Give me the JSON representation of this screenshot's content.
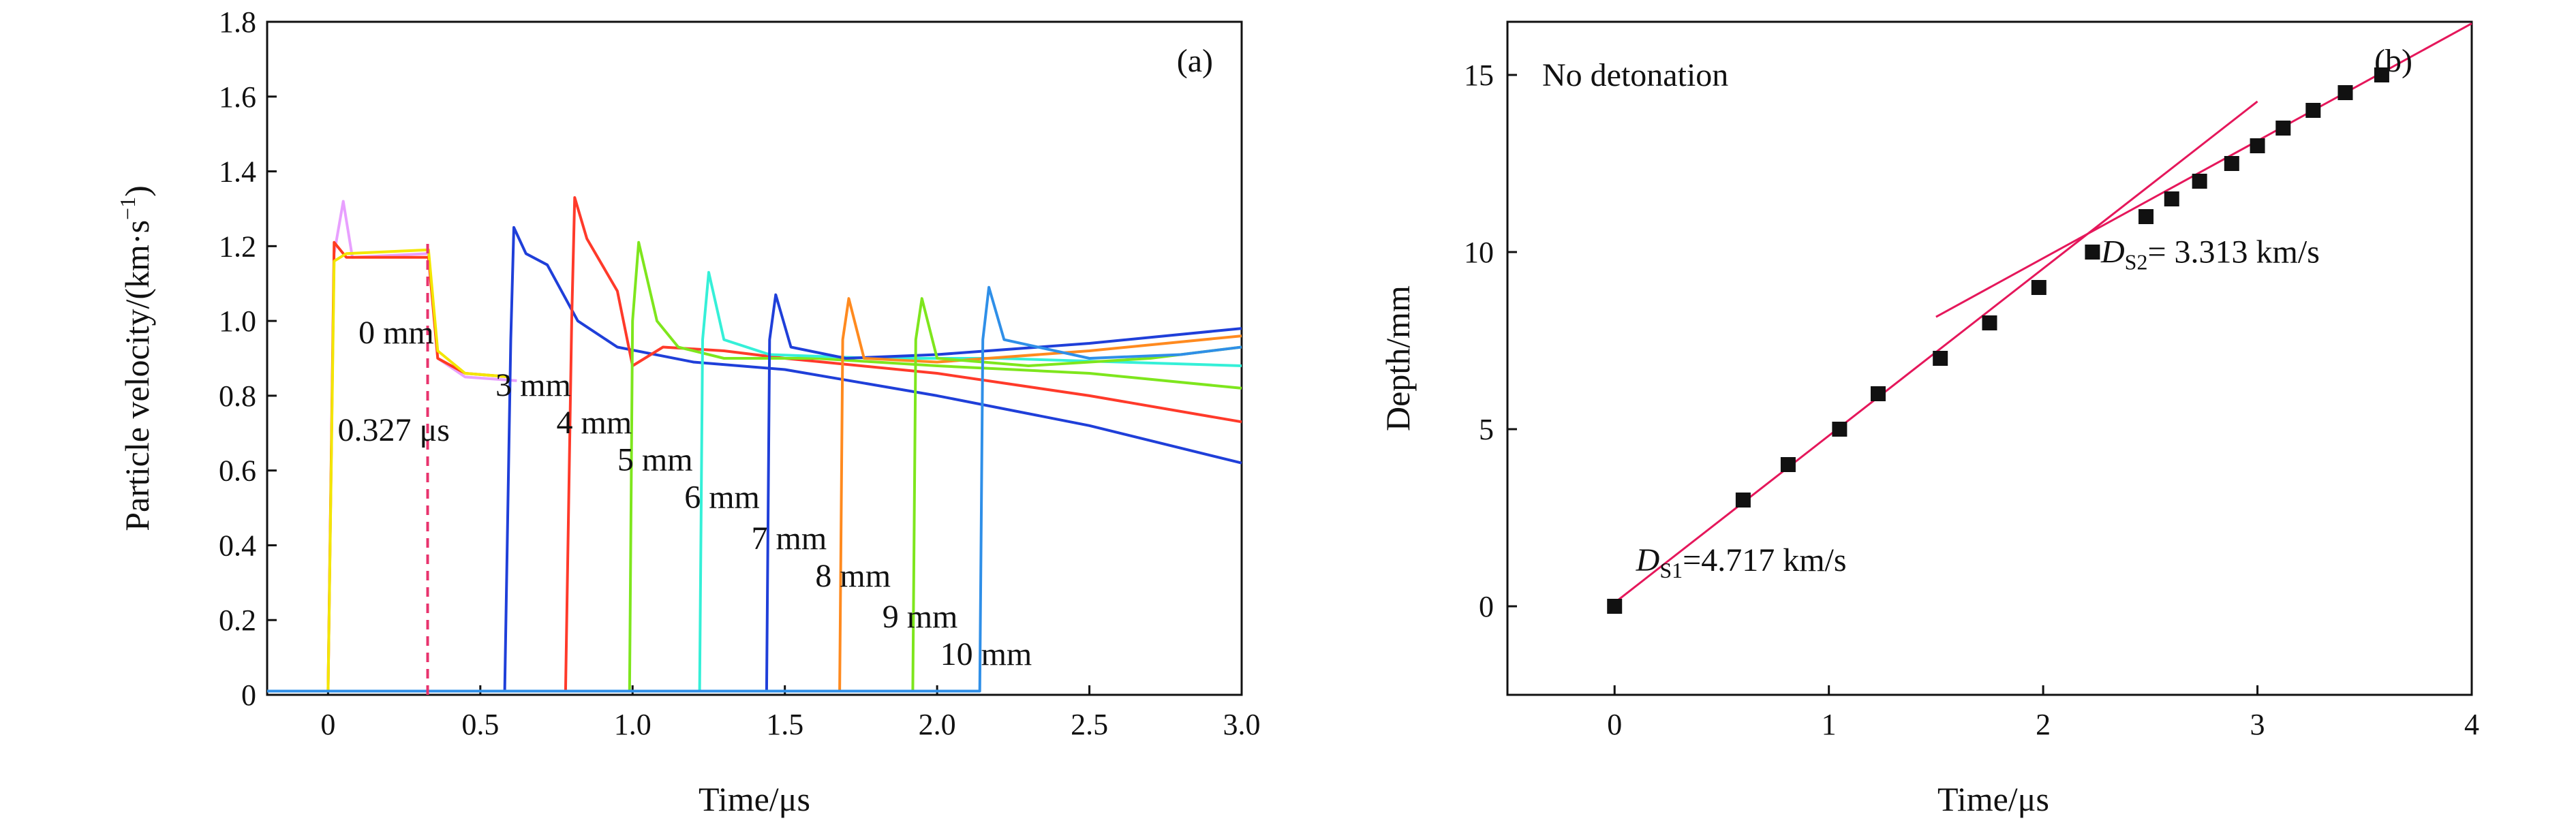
{
  "chart_data": [
    {
      "type": "line",
      "panel_label": "(a)",
      "xlabel": "Time/μs",
      "ylabel": "Particle velocity/(km·s",
      "ylabel_sup": "−1",
      "ylabel_close": ")",
      "xlim": [
        -0.2,
        3.0
      ],
      "ylim": [
        0,
        1.8
      ],
      "xticks": [
        "0",
        "0.5",
        "1.0",
        "1.5",
        "2.0",
        "2.5",
        "3.0"
      ],
      "xtick_values": [
        0,
        0.5,
        1.0,
        1.5,
        2.0,
        2.5,
        3.0
      ],
      "yticks": [
        "0",
        "0.2",
        "0.4",
        "0.6",
        "0.8",
        "1.0",
        "1.2",
        "1.4",
        "1.6",
        "1.8"
      ],
      "ytick_values": [
        0,
        0.2,
        0.4,
        0.6,
        0.8,
        1.0,
        1.2,
        1.4,
        1.6,
        1.8
      ],
      "marker_line": {
        "x": 0.327,
        "y_top": 1.21,
        "color": "#e8336d",
        "label": "0.327 μs"
      },
      "series": [
        {
          "name": "0 mm",
          "color": "#e8a0ff",
          "points": [
            [
              -0.2,
              0.01
            ],
            [
              0.0,
              0.01
            ],
            [
              0.02,
              1.18
            ],
            [
              0.05,
              1.32
            ],
            [
              0.08,
              1.17
            ],
            [
              0.33,
              1.18
            ],
            [
              0.36,
              0.9
            ],
            [
              0.45,
              0.85
            ],
            [
              0.62,
              0.84
            ]
          ]
        },
        {
          "name": "0 mm",
          "color": "#ff3b1f",
          "points": [
            [
              -0.2,
              0.01
            ],
            [
              0.0,
              0.01
            ],
            [
              0.02,
              1.21
            ],
            [
              0.06,
              1.17
            ],
            [
              0.33,
              1.17
            ],
            [
              0.36,
              0.9
            ],
            [
              0.45,
              0.86
            ],
            [
              0.6,
              0.85
            ]
          ]
        },
        {
          "name": "0 mm",
          "color": "#f3e600",
          "points": [
            [
              -0.2,
              0.01
            ],
            [
              0.0,
              0.01
            ],
            [
              0.02,
              1.16
            ],
            [
              0.06,
              1.18
            ],
            [
              0.33,
              1.19
            ],
            [
              0.36,
              0.92
            ],
            [
              0.45,
              0.86
            ],
            [
              0.6,
              0.85
            ]
          ]
        },
        {
          "name": "3 mm",
          "color": "#1f3fd9",
          "points": [
            [
              -0.2,
              0.01
            ],
            [
              0.58,
              0.01
            ],
            [
              0.6,
              0.95
            ],
            [
              0.61,
              1.25
            ],
            [
              0.65,
              1.18
            ],
            [
              0.72,
              1.15
            ],
            [
              0.82,
              1.0
            ],
            [
              0.95,
              0.93
            ],
            [
              1.2,
              0.89
            ],
            [
              1.5,
              0.87
            ],
            [
              2.0,
              0.8
            ],
            [
              2.5,
              0.72
            ],
            [
              3.0,
              0.62
            ]
          ]
        },
        {
          "name": "4 mm",
          "color": "#ff3a2a",
          "points": [
            [
              -0.2,
              0.01
            ],
            [
              0.78,
              0.01
            ],
            [
              0.8,
              1.0
            ],
            [
              0.81,
              1.33
            ],
            [
              0.85,
              1.22
            ],
            [
              0.95,
              1.08
            ],
            [
              1.0,
              0.88
            ],
            [
              1.1,
              0.93
            ],
            [
              1.3,
              0.92
            ],
            [
              1.5,
              0.9
            ],
            [
              2.0,
              0.86
            ],
            [
              2.5,
              0.8
            ],
            [
              3.0,
              0.73
            ]
          ]
        },
        {
          "name": "5 mm",
          "color": "#7ee61d",
          "points": [
            [
              -0.2,
              0.01
            ],
            [
              0.99,
              0.01
            ],
            [
              1.0,
              1.0
            ],
            [
              1.02,
              1.21
            ],
            [
              1.08,
              1.0
            ],
            [
              1.15,
              0.93
            ],
            [
              1.3,
              0.9
            ],
            [
              1.6,
              0.9
            ],
            [
              2.0,
              0.88
            ],
            [
              2.5,
              0.86
            ],
            [
              3.0,
              0.82
            ]
          ]
        },
        {
          "name": "6 mm",
          "color": "#35f0d8",
          "points": [
            [
              -0.2,
              0.01
            ],
            [
              1.22,
              0.01
            ],
            [
              1.23,
              0.95
            ],
            [
              1.25,
              1.13
            ],
            [
              1.3,
              0.95
            ],
            [
              1.45,
              0.91
            ],
            [
              1.8,
              0.9
            ],
            [
              2.2,
              0.9
            ],
            [
              2.6,
              0.89
            ],
            [
              3.0,
              0.88
            ]
          ]
        },
        {
          "name": "7 mm",
          "color": "#1f3fd9",
          "points": [
            [
              -0.2,
              0.01
            ],
            [
              1.44,
              0.01
            ],
            [
              1.45,
              0.95
            ],
            [
              1.47,
              1.07
            ],
            [
              1.52,
              0.93
            ],
            [
              1.7,
              0.9
            ],
            [
              2.0,
              0.91
            ],
            [
              2.5,
              0.94
            ],
            [
              3.0,
              0.98
            ]
          ]
        },
        {
          "name": "8 mm",
          "color": "#ff8a1f",
          "points": [
            [
              -0.2,
              0.01
            ],
            [
              1.68,
              0.01
            ],
            [
              1.69,
              0.95
            ],
            [
              1.71,
              1.06
            ],
            [
              1.76,
              0.9
            ],
            [
              2.0,
              0.89
            ],
            [
              2.5,
              0.92
            ],
            [
              3.0,
              0.96
            ]
          ]
        },
        {
          "name": "9 mm",
          "color": "#7ee61d",
          "points": [
            [
              -0.2,
              0.01
            ],
            [
              1.92,
              0.01
            ],
            [
              1.93,
              0.95
            ],
            [
              1.95,
              1.06
            ],
            [
              2.0,
              0.9
            ],
            [
              2.3,
              0.88
            ],
            [
              2.7,
              0.9
            ],
            [
              3.0,
              0.93
            ]
          ]
        },
        {
          "name": "10 mm",
          "color": "#2f8fe8",
          "points": [
            [
              -0.2,
              0.01
            ],
            [
              2.14,
              0.01
            ],
            [
              2.15,
              0.95
            ],
            [
              2.17,
              1.09
            ],
            [
              2.22,
              0.95
            ],
            [
              2.5,
              0.9
            ],
            [
              2.8,
              0.91
            ],
            [
              3.0,
              0.93
            ]
          ]
        }
      ],
      "annotations": [
        {
          "text": "0 mm",
          "x": 0.1,
          "y": 0.94
        },
        {
          "text": "3 mm",
          "x": 0.55,
          "y": 0.8
        },
        {
          "text": "4 mm",
          "x": 0.75,
          "y": 0.7
        },
        {
          "text": "5 mm",
          "x": 0.95,
          "y": 0.6
        },
        {
          "text": "6 mm",
          "x": 1.17,
          "y": 0.5
        },
        {
          "text": "7 mm",
          "x": 1.39,
          "y": 0.39
        },
        {
          "text": "8 mm",
          "x": 1.6,
          "y": 0.29
        },
        {
          "text": "9 mm",
          "x": 1.82,
          "y": 0.18
        },
        {
          "text": "10 mm",
          "x": 2.01,
          "y": 0.08
        }
      ]
    },
    {
      "type": "scatter",
      "panel_label": "(b)",
      "title": "No detonation",
      "xlabel": "Time/μs",
      "ylabel": "Depth/mm",
      "xlim": [
        -0.5,
        4.0
      ],
      "ylim": [
        -2.5,
        16.5
      ],
      "xticks": [
        "0",
        "1",
        "2",
        "3",
        "4"
      ],
      "xtick_values": [
        0,
        1,
        2,
        3,
        4
      ],
      "yticks": [
        "0",
        "5",
        "10",
        "15"
      ],
      "ytick_values": [
        0,
        5,
        10,
        15
      ],
      "points": [
        [
          0,
          0
        ],
        [
          0.6,
          3
        ],
        [
          0.81,
          4
        ],
        [
          1.05,
          5
        ],
        [
          1.23,
          6
        ],
        [
          1.52,
          7
        ],
        [
          1.75,
          8
        ],
        [
          1.98,
          9
        ],
        [
          2.23,
          10
        ],
        [
          2.48,
          11
        ],
        [
          2.6,
          11.5
        ],
        [
          2.73,
          12
        ],
        [
          2.88,
          12.5
        ],
        [
          3.0,
          13
        ],
        [
          3.12,
          13.5
        ],
        [
          3.26,
          14
        ],
        [
          3.41,
          14.5
        ],
        [
          3.58,
          15
        ]
      ],
      "fits": [
        {
          "name": "DS1",
          "label_main": "D",
          "label_sub": "S1",
          "label_value": "=4.717 km/s",
          "slope": 4.717,
          "intercept": 0.1,
          "x_range": [
            0,
            3.0
          ],
          "color": "#e5175b",
          "label_x": 0.1,
          "label_y": 1.0
        },
        {
          "name": "DS2",
          "label_main": "D",
          "label_sub": "S2",
          "label_value": "= 3.313 km/s",
          "slope": 3.313,
          "intercept": 3.2,
          "x_range": [
            1.5,
            4.0
          ],
          "color": "#e5175b",
          "label_x": 2.27,
          "label_y": 9.7
        }
      ]
    }
  ]
}
